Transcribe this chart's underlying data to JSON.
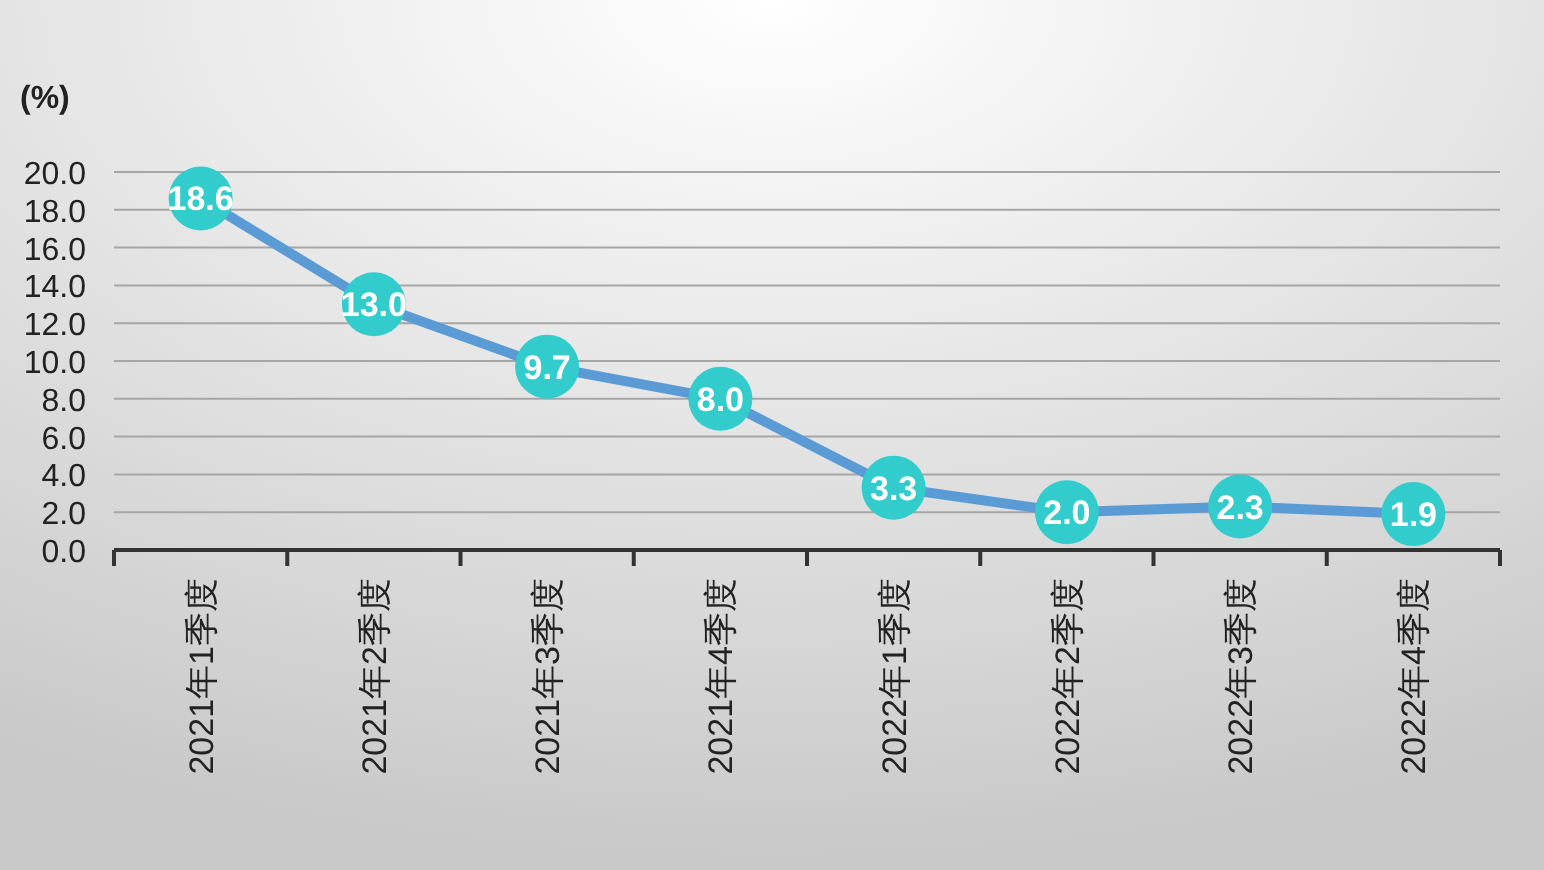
{
  "chart_data": {
    "type": "line",
    "ylabel": "(%)",
    "categories": [
      "2021年1季度",
      "2021年2季度",
      "2021年3季度",
      "2021年4季度",
      "2022年1季度",
      "2022年2季度",
      "2022年3季度",
      "2022年4季度"
    ],
    "series": [
      {
        "color": "#5b9bd5",
        "colors": [
          "#33cccc",
          "#33cccc",
          "#33cccc",
          "#33cccc",
          "#33cccc",
          "#33cccc",
          "#33cccc",
          "#33cccc"
        ],
        "values": [
          18.6,
          13.0,
          9.7,
          8.0,
          3.3,
          2.0,
          2.3,
          1.9
        ],
        "value_labels": [
          "18.6",
          "13.0",
          "9.7",
          "8.0",
          "3.3",
          "2.0",
          "2.3",
          "1.9"
        ]
      }
    ],
    "ylim": [
      0,
      20
    ],
    "yticks": [
      {
        "value": 0,
        "label": "0.0"
      },
      {
        "value": 2,
        "label": "2.0"
      },
      {
        "value": 4,
        "label": "4.0"
      },
      {
        "value": 6,
        "label": "6.0"
      },
      {
        "value": 8,
        "label": "8.0"
      },
      {
        "value": 10,
        "label": "10.0"
      },
      {
        "value": 12,
        "label": "12.0"
      },
      {
        "value": 14,
        "label": "14.0"
      },
      {
        "value": 16,
        "label": "16.0"
      },
      {
        "value": 18,
        "label": "18.0"
      },
      {
        "value": 20,
        "label": "20.0"
      }
    ],
    "grid": "y",
    "marker": "circle",
    "line_style": "solid"
  }
}
